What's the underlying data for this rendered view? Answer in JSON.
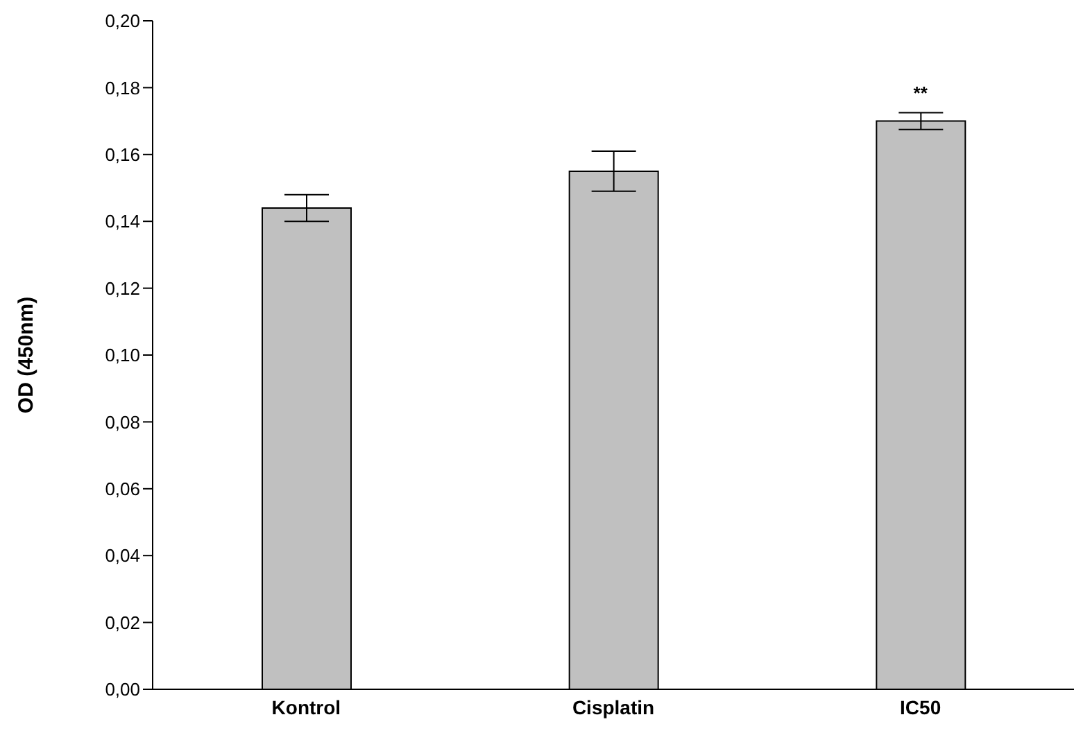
{
  "chart_data": {
    "type": "bar",
    "ylabel": "OD (450nm)",
    "categories": [
      "Kontrol",
      "Cisplatin",
      "IC50"
    ],
    "values": [
      0.144,
      0.155,
      0.17
    ],
    "errors": [
      0.004,
      0.006,
      0.0025
    ],
    "color": "#c0c0c0",
    "ylim": [
      0,
      0.2
    ],
    "yticks": [
      {
        "value": 0,
        "label": "0,00"
      },
      {
        "value": 0.02,
        "label": "0,02"
      },
      {
        "value": 0.04,
        "label": "0,04"
      },
      {
        "value": 0.06,
        "label": "0,06"
      },
      {
        "value": 0.08,
        "label": "0,08"
      },
      {
        "value": 0.1,
        "label": "0,10"
      },
      {
        "value": 0.12,
        "label": "0,12"
      },
      {
        "value": 0.14,
        "label": "0,14"
      },
      {
        "value": 0.16,
        "label": "0,16"
      },
      {
        "value": 0.18,
        "label": "0,18"
      },
      {
        "value": 0.2,
        "label": "0,20"
      }
    ],
    "annotations": [
      {
        "text": "**",
        "x": "IC50",
        "y": 0.17
      }
    ],
    "grid": false,
    "legend": false
  }
}
